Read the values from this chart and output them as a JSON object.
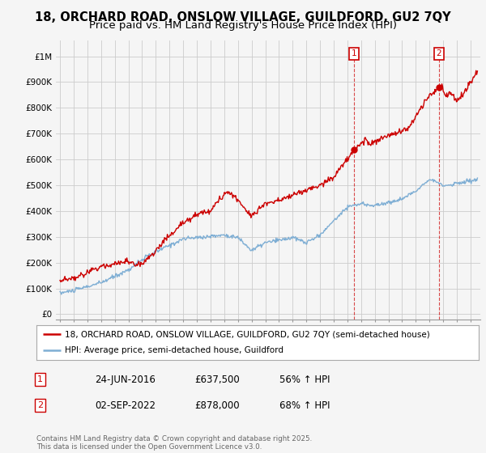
{
  "title": "18, ORCHARD ROAD, ONSLOW VILLAGE, GUILDFORD, GU2 7QY",
  "subtitle": "Price paid vs. HM Land Registry's House Price Index (HPI)",
  "ylabel_ticks": [
    "£0",
    "£100K",
    "£200K",
    "£300K",
    "£400K",
    "£500K",
    "£600K",
    "£700K",
    "£800K",
    "£900K",
    "£1M"
  ],
  "ytick_values": [
    0,
    100000,
    200000,
    300000,
    400000,
    500000,
    600000,
    700000,
    800000,
    900000,
    1000000
  ],
  "ylim": [
    -20000,
    1060000
  ],
  "xlim_start": 1994.7,
  "xlim_end": 2025.7,
  "red_line_color": "#cc0000",
  "blue_line_color": "#7eaed4",
  "grid_color": "#cccccc",
  "background_color": "#f5f5f5",
  "sale1_x": 2016.48,
  "sale1_y": 637500,
  "sale2_x": 2022.67,
  "sale2_y": 878000,
  "legend_red_label": "18, ORCHARD ROAD, ONSLOW VILLAGE, GUILDFORD, GU2 7QY (semi-detached house)",
  "legend_blue_label": "HPI: Average price, semi-detached house, Guildford",
  "annotation1": "1",
  "annotation2": "2",
  "table_row1": [
    "1",
    "24-JUN-2016",
    "£637,500",
    "56% ↑ HPI"
  ],
  "table_row2": [
    "2",
    "02-SEP-2022",
    "£878,000",
    "68% ↑ HPI"
  ],
  "footer": "Contains HM Land Registry data © Crown copyright and database right 2025.\nThis data is licensed under the Open Government Licence v3.0.",
  "title_fontsize": 10.5,
  "subtitle_fontsize": 9.5
}
